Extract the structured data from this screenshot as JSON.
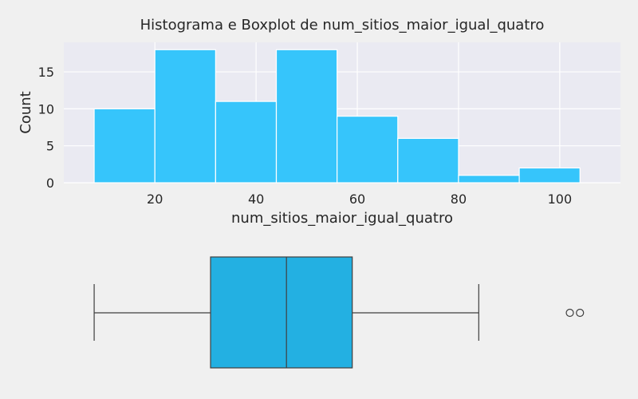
{
  "chart_data": [
    {
      "type": "bar",
      "subtype": "histogram",
      "title": "Histograma e Boxplot de num_sitios_maior_igual_quatro",
      "xlabel": "num_sitios_maior_igual_quatro",
      "ylabel": "Count",
      "bins": [
        {
          "start": 8,
          "end": 20,
          "count": 10
        },
        {
          "start": 20,
          "end": 32,
          "count": 18
        },
        {
          "start": 32,
          "end": 44,
          "count": 11
        },
        {
          "start": 44,
          "end": 56,
          "count": 18
        },
        {
          "start": 56,
          "end": 68,
          "count": 9
        },
        {
          "start": 68,
          "end": 80,
          "count": 6
        },
        {
          "start": 80,
          "end": 92,
          "count": 1
        },
        {
          "start": 92,
          "end": 104,
          "count": 2
        }
      ],
      "xlim": [
        2,
        112
      ],
      "ylim": [
        0,
        19
      ],
      "xticks": [
        20,
        40,
        60,
        80,
        100
      ],
      "yticks": [
        0,
        5,
        10,
        15
      ],
      "grid": true,
      "colors": {
        "bar": "#36c5fb",
        "bar_edge": "#ffffff",
        "axes_bg": "#eaeaf2",
        "grid": "#ffffff"
      }
    },
    {
      "type": "boxplot",
      "orientation": "horizontal",
      "stats": {
        "whisker_low": 8,
        "q1": 31,
        "median": 46,
        "q3": 59,
        "whisker_high": 84
      },
      "outliers": [
        102,
        104
      ],
      "xlim": [
        2,
        112
      ],
      "colors": {
        "box": "#23b0e2",
        "line": "#3f3f3f"
      }
    }
  ]
}
